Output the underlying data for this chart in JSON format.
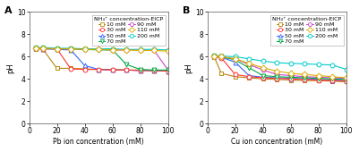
{
  "panel_A": {
    "title": "A",
    "xlabel": "Pb ion concentration (mM)",
    "ylabel": "pH",
    "xlim": [
      0,
      100
    ],
    "ylim": [
      0,
      10
    ],
    "yticks": [
      0,
      2,
      4,
      6,
      8,
      10
    ],
    "xticks": [
      0,
      20,
      40,
      60,
      80,
      100
    ],
    "series": [
      {
        "label": "10 mM",
        "color": "#b8860b",
        "marker": "s",
        "x": [
          5,
          10,
          20,
          30,
          40,
          50,
          60,
          70,
          80,
          90,
          100
        ],
        "y": [
          6.7,
          6.65,
          4.95,
          4.95,
          4.9,
          4.85,
          4.85,
          4.8,
          4.8,
          4.75,
          4.75
        ]
      },
      {
        "label": "30 mM",
        "color": "#ff3333",
        "marker": "o",
        "x": [
          5,
          10,
          20,
          30,
          40,
          50,
          60,
          70,
          80,
          90,
          100
        ],
        "y": [
          6.75,
          6.7,
          6.7,
          4.9,
          4.85,
          4.85,
          4.8,
          4.8,
          4.75,
          4.75,
          4.7
        ]
      },
      {
        "label": "50 mM",
        "color": "#3366ff",
        "marker": "^",
        "x": [
          5,
          10,
          20,
          30,
          40,
          50,
          60,
          70,
          80,
          90,
          100
        ],
        "y": [
          6.75,
          6.7,
          6.65,
          6.6,
          5.2,
          4.85,
          4.8,
          4.8,
          4.75,
          4.75,
          4.7
        ]
      },
      {
        "label": "70 mM",
        "color": "#00aa44",
        "marker": "v",
        "x": [
          5,
          10,
          20,
          30,
          40,
          50,
          60,
          70,
          80,
          90,
          100
        ],
        "y": [
          6.75,
          6.75,
          6.7,
          6.7,
          6.65,
          6.6,
          6.6,
          5.3,
          4.85,
          4.8,
          4.8
        ]
      },
      {
        "label": "90 mM",
        "color": "#cc44cc",
        "marker": "o",
        "x": [
          5,
          10,
          20,
          30,
          40,
          50,
          60,
          70,
          80,
          90,
          100
        ],
        "y": [
          6.75,
          6.75,
          6.7,
          6.7,
          6.65,
          6.65,
          6.6,
          6.6,
          6.6,
          6.55,
          4.8
        ]
      },
      {
        "label": "110 mM",
        "color": "#ddaa00",
        "marker": "D",
        "x": [
          5,
          10,
          20,
          30,
          40,
          50,
          60,
          70,
          80,
          90,
          100
        ],
        "y": [
          6.75,
          6.75,
          6.7,
          6.7,
          6.65,
          6.65,
          6.6,
          6.6,
          6.55,
          6.55,
          6.5
        ]
      },
      {
        "label": "200 mM",
        "color": "#00cccc",
        "marker": "o",
        "x": [
          5,
          10,
          20,
          30,
          40,
          50,
          60,
          70,
          80,
          90,
          100
        ],
        "y": [
          6.8,
          6.8,
          6.75,
          6.75,
          6.7,
          6.7,
          6.7,
          6.65,
          6.65,
          6.65,
          6.6
        ]
      }
    ]
  },
  "panel_B": {
    "title": "B",
    "xlabel": "Cu ion concentration (mM)",
    "ylabel": "pH",
    "xlim": [
      0,
      100
    ],
    "ylim": [
      0,
      10
    ],
    "yticks": [
      0,
      2,
      4,
      6,
      8,
      10
    ],
    "xticks": [
      0,
      20,
      40,
      60,
      80,
      100
    ],
    "series": [
      {
        "label": "10 mM",
        "color": "#b8860b",
        "marker": "s",
        "x": [
          5,
          10,
          20,
          30,
          40,
          50,
          60,
          70,
          80,
          90,
          100
        ],
        "y": [
          5.95,
          4.5,
          4.2,
          4.1,
          4.0,
          3.95,
          3.9,
          3.85,
          3.85,
          3.8,
          3.75
        ]
      },
      {
        "label": "30 mM",
        "color": "#ff3333",
        "marker": "o",
        "x": [
          5,
          10,
          20,
          30,
          40,
          50,
          60,
          70,
          80,
          90,
          100
        ],
        "y": [
          6.0,
          5.9,
          4.4,
          4.2,
          4.1,
          4.05,
          4.0,
          3.95,
          3.9,
          3.85,
          3.8
        ]
      },
      {
        "label": "50 mM",
        "color": "#3366ff",
        "marker": "^",
        "x": [
          5,
          10,
          20,
          30,
          40,
          50,
          60,
          70,
          80,
          90,
          100
        ],
        "y": [
          6.0,
          5.95,
          5.5,
          4.3,
          4.15,
          4.1,
          4.05,
          4.0,
          3.95,
          3.9,
          3.85
        ]
      },
      {
        "label": "70 mM",
        "color": "#00aa44",
        "marker": "v",
        "x": [
          5,
          10,
          20,
          30,
          40,
          50,
          60,
          70,
          80,
          90,
          100
        ],
        "y": [
          6.05,
          6.0,
          5.7,
          5.0,
          4.3,
          4.2,
          4.15,
          4.1,
          4.05,
          4.0,
          3.95
        ]
      },
      {
        "label": "90 mM",
        "color": "#cc44cc",
        "marker": "o",
        "x": [
          5,
          10,
          20,
          30,
          40,
          50,
          60,
          70,
          80,
          90,
          100
        ],
        "y": [
          6.05,
          6.0,
          5.8,
          5.3,
          4.8,
          4.4,
          4.3,
          4.2,
          4.15,
          4.1,
          4.05
        ]
      },
      {
        "label": "110 mM",
        "color": "#ddaa00",
        "marker": "D",
        "x": [
          5,
          10,
          20,
          30,
          40,
          50,
          60,
          70,
          80,
          90,
          100
        ],
        "y": [
          6.05,
          6.0,
          5.8,
          5.4,
          5.0,
          4.7,
          4.5,
          4.4,
          4.3,
          4.2,
          4.1
        ]
      },
      {
        "label": "200 mM",
        "color": "#00cccc",
        "marker": "o",
        "x": [
          5,
          10,
          20,
          30,
          40,
          50,
          60,
          70,
          80,
          90,
          100
        ],
        "y": [
          6.1,
          6.05,
          6.0,
          5.8,
          5.6,
          5.45,
          5.4,
          5.35,
          5.3,
          5.25,
          4.85
        ]
      }
    ]
  },
  "legend_title": "NH₄⁺ concentration-EICP",
  "legend_col1": [
    "10 mM",
    "50 mM",
    "90 mM",
    "200 mM"
  ],
  "legend_col2": [
    "30 mM",
    "70 mM",
    "110 mM"
  ],
  "fig_bg": "#ffffff",
  "plot_bg": "#ffffff",
  "marker_size": 3.5,
  "linewidth": 0.8
}
